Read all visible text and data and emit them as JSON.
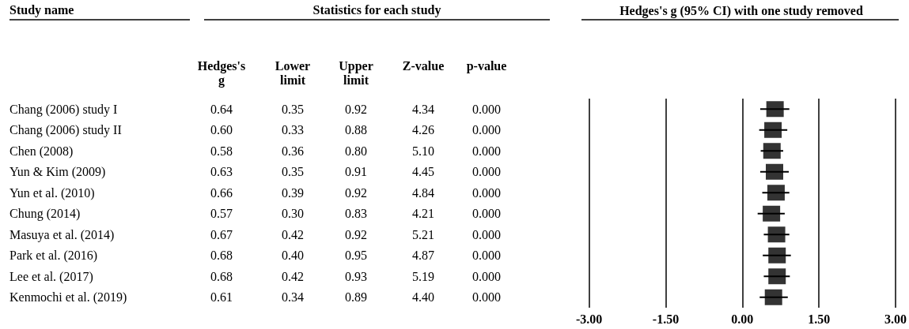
{
  "chart_data": [
    {
      "type": "other",
      "annotations": [
        "Study name",
        "Statistics for each study"
      ],
      "categories": [
        "Chang (2006) study I",
        "Chang (2006) study II",
        "Chen (2008)",
        "Yun & Kim (2009)",
        "Yun et al. (2010)",
        "Chung (2014)",
        "Masuya et al. (2014)",
        "Park et al. (2016)",
        "Lee et al. (2017)",
        "Kenmochi et al. (2019)"
      ],
      "series": [
        {
          "name": "Hedges's\ng",
          "values": [
            0.64,
            0.6,
            0.58,
            0.63,
            0.66,
            0.57,
            0.67,
            0.68,
            0.68,
            0.61
          ],
          "value_labels": [
            "0.64",
            "0.60",
            "0.58",
            "0.63",
            "0.66",
            "0.57",
            "0.67",
            "0.68",
            "0.68",
            "0.61"
          ]
        },
        {
          "name": "Lower\nlimit",
          "values": [
            0.35,
            0.33,
            0.36,
            0.35,
            0.39,
            0.3,
            0.42,
            0.4,
            0.42,
            0.34
          ],
          "value_labels": [
            "0.35",
            "0.33",
            "0.36",
            "0.35",
            "0.39",
            "0.30",
            "0.42",
            "0.40",
            "0.42",
            "0.34"
          ]
        },
        {
          "name": "Upper\nlimit",
          "values": [
            0.92,
            0.88,
            0.8,
            0.91,
            0.92,
            0.83,
            0.92,
            0.95,
            0.93,
            0.89
          ],
          "value_labels": [
            "0.92",
            "0.88",
            "0.80",
            "0.91",
            "0.92",
            "0.83",
            "0.92",
            "0.95",
            "0.93",
            "0.89"
          ]
        },
        {
          "name": "Z-value",
          "values": [
            4.34,
            4.26,
            5.1,
            4.45,
            4.84,
            4.21,
            5.21,
            4.87,
            5.19,
            4.4
          ],
          "value_labels": [
            "4.34",
            "4.26",
            "5.10",
            "4.45",
            "4.84",
            "4.21",
            "5.21",
            "4.87",
            "5.19",
            "4.40"
          ]
        },
        {
          "name": "p-value",
          "values": [
            0,
            0,
            0,
            0,
            0,
            0,
            0,
            0,
            0,
            0
          ],
          "value_labels": [
            "0.000",
            "0.000",
            "0.000",
            "0.000",
            "0.000",
            "0.000",
            "0.000",
            "0.000",
            "0.000",
            "0.000"
          ]
        }
      ],
      "data_labels": true
    },
    {
      "type": "scatter",
      "orientation": "horizontal",
      "title": "Hedges's g (95% CI) with one study removed",
      "categories": [
        null,
        null,
        null,
        null,
        null,
        null,
        null,
        null,
        null,
        null
      ],
      "series": [
        {
          "color": "#000000",
          "values": [
            0.64,
            0.6,
            0.58,
            0.63,
            0.66,
            0.57,
            0.67,
            0.68,
            0.68,
            0.61
          ],
          "errors": [
            [
              0.35,
              0.92
            ],
            [
              0.33,
              0.88
            ],
            [
              0.36,
              0.8
            ],
            [
              0.35,
              0.91
            ],
            [
              0.39,
              0.92
            ],
            [
              0.3,
              0.83
            ],
            [
              0.42,
              0.92
            ],
            [
              0.4,
              0.95
            ],
            [
              0.42,
              0.93
            ],
            [
              0.34,
              0.89
            ]
          ]
        }
      ],
      "xlim": [
        -3,
        3
      ],
      "xticks": [
        {
          "value": -3,
          "label": "-3.00"
        },
        {
          "value": -1.5,
          "label": "-1.50"
        },
        {
          "value": 0,
          "label": "0.00"
        },
        {
          "value": 1.5,
          "label": "1.50"
        },
        {
          "value": 3,
          "label": "3.00"
        }
      ],
      "grid": "x",
      "marker": "square",
      "tick_labels": "x"
    }
  ]
}
